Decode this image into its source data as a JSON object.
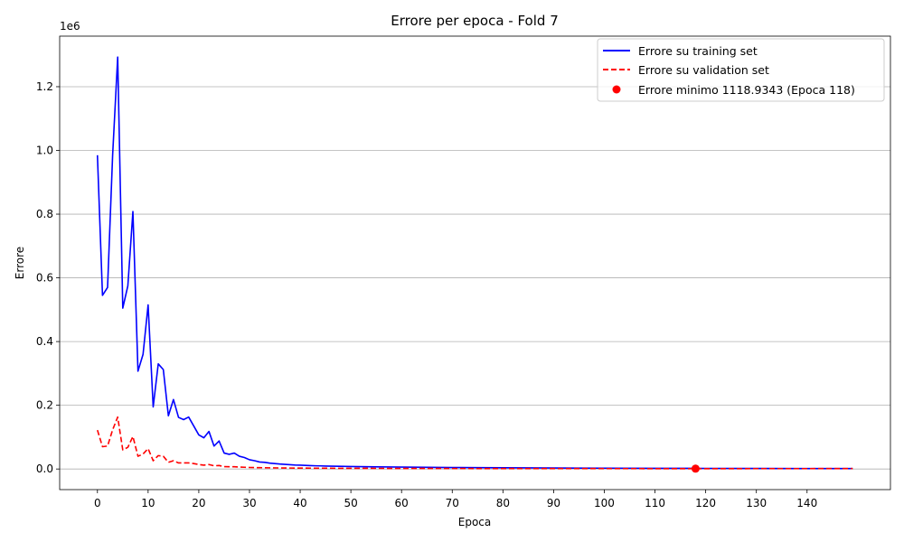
{
  "chart_data": {
    "type": "line",
    "title": "Errore per epoca - Fold 7",
    "xlabel": "Epoca",
    "ylabel": "Errore",
    "y_offset_label": "1e6",
    "xlim": [
      -7.45,
      156.45
    ],
    "ylim": [
      -64700,
      1358700
    ],
    "x_ticks": [
      0,
      10,
      20,
      30,
      40,
      50,
      60,
      70,
      80,
      90,
      100,
      110,
      120,
      130,
      140
    ],
    "y_ticks": [
      0,
      200000,
      400000,
      600000,
      800000,
      1000000,
      1200000
    ],
    "y_tick_labels": [
      "0.0",
      "0.2",
      "0.4",
      "0.6",
      "0.8",
      "1.0",
      "1.2"
    ],
    "grid": "horizontal",
    "legend_position": "top-right",
    "series": [
      {
        "name": "Errore su training set",
        "color": "#0000ff",
        "style": "solid",
        "x": [
          0,
          1,
          2,
          3,
          4,
          5,
          6,
          7,
          8,
          9,
          10,
          11,
          12,
          13,
          14,
          15,
          16,
          17,
          18,
          19,
          20,
          21,
          22,
          23,
          24,
          25,
          26,
          27,
          28,
          29,
          30,
          31,
          32,
          33,
          34,
          35,
          36,
          37,
          38,
          39,
          40,
          41,
          42,
          43,
          44,
          45,
          50,
          55,
          60,
          65,
          70,
          75,
          80,
          90,
          100,
          110,
          120,
          130,
          140,
          149
        ],
        "y": [
          985000,
          545000,
          570000,
          985000,
          1293000,
          505000,
          575000,
          808000,
          307000,
          360000,
          515000,
          195000,
          330000,
          312000,
          167000,
          218000,
          162000,
          155000,
          163000,
          135000,
          107000,
          98000,
          118000,
          72000,
          88000,
          50000,
          46000,
          50000,
          40000,
          36000,
          29000,
          26000,
          22000,
          21000,
          18500,
          17000,
          15500,
          14500,
          13500,
          12500,
          12000,
          11200,
          10600,
          10100,
          9700,
          9300,
          7800,
          6800,
          6000,
          5300,
          4700,
          4200,
          3800,
          3100,
          2600,
          2200,
          1900,
          1700,
          1500,
          1400
        ]
      },
      {
        "name": "Errore su validation set",
        "color": "#ff0000",
        "style": "dashed",
        "x": [
          0,
          1,
          2,
          3,
          4,
          5,
          6,
          7,
          8,
          9,
          10,
          11,
          12,
          13,
          14,
          15,
          16,
          17,
          18,
          19,
          20,
          21,
          22,
          23,
          24,
          25,
          26,
          27,
          28,
          29,
          30,
          32,
          34,
          36,
          38,
          40,
          45,
          50,
          60,
          70,
          80,
          90,
          100,
          110,
          118,
          120,
          130,
          140,
          149
        ],
        "y": [
          122000,
          70000,
          72000,
          123000,
          163000,
          60000,
          68000,
          102000,
          40000,
          47000,
          64000,
          26000,
          42000,
          40000,
          21000,
          26000,
          19000,
          19000,
          19000,
          17000,
          14000,
          12000,
          14000,
          10000,
          11000,
          7500,
          7000,
          7000,
          6000,
          5500,
          4800,
          4200,
          3700,
          3300,
          3000,
          2800,
          2400,
          2100,
          1800,
          1600,
          1450,
          1350,
          1250,
          1180,
          1118.9343,
          1150,
          1200,
          1250,
          1300
        ]
      }
    ],
    "highlight": {
      "name": "Errore minimo 1118.9343 (Epoca 118)",
      "x": 118,
      "y": 1118.9343,
      "color": "#ff0000"
    }
  }
}
